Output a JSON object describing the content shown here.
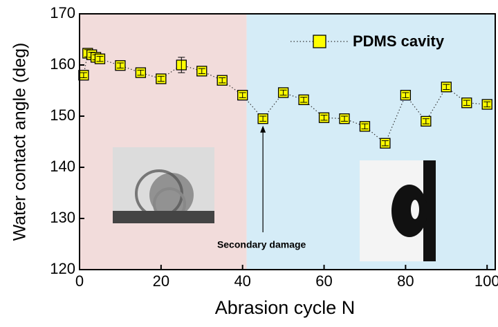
{
  "chart_data": {
    "type": "scatter",
    "x_label": "Abrasion cycle N",
    "y_label": "Water contact angle (deg)",
    "x": [
      1,
      2,
      3,
      4,
      5,
      10,
      15,
      20,
      25,
      30,
      35,
      40,
      45,
      50,
      55,
      60,
      65,
      70,
      75,
      80,
      85,
      90,
      95,
      100
    ],
    "series": [
      {
        "name": "PDMS cavity",
        "color": "#ffff00",
        "values": [
          158.0,
          162.3,
          162.0,
          161.5,
          161.2,
          159.9,
          158.5,
          157.3,
          160.0,
          158.8,
          157.0,
          154.1,
          149.5,
          154.6,
          153.2,
          149.7,
          149.5,
          148.0,
          144.7,
          154.1,
          149.0,
          155.7,
          152.6,
          152.3
        ],
        "errors": [
          0.5,
          0.7,
          0.5,
          0.5,
          0.5,
          0.5,
          0.5,
          0.5,
          1.5,
          0.5,
          0.5,
          0.5,
          0.5,
          0.5,
          0.5,
          0.5,
          0.5,
          0.5,
          0.5,
          0.5,
          0.5,
          0.5,
          0.5,
          0.5
        ]
      }
    ],
    "xlim": [
      0,
      102
    ],
    "ylim": [
      120,
      170
    ],
    "xticks": [
      0,
      20,
      40,
      60,
      80,
      100
    ],
    "yticks": [
      120,
      130,
      140,
      150,
      160,
      170
    ],
    "background_bands": [
      {
        "x": [
          0,
          41
        ],
        "color": "#f2dcdb"
      },
      {
        "x": [
          41,
          102
        ],
        "color": "#d5ecf7"
      }
    ],
    "annotations": [
      {
        "text": "Secondary damage",
        "x": 45
      }
    ],
    "legend": "upper right"
  }
}
